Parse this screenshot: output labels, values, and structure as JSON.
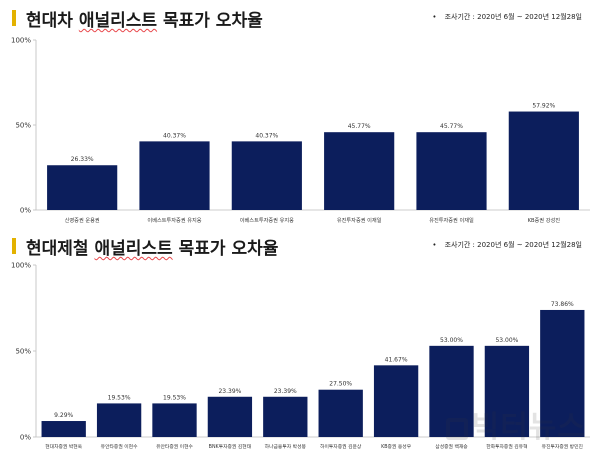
{
  "charts": [
    {
      "title_prefix": "현대차 ",
      "title_underlined": "애널리스트",
      "title_suffix": " 목표가 오차율",
      "period": "조사기간 : 2020년 6월 ~ 2020년 12월28일"
    },
    {
      "title_prefix": "현대제철 ",
      "title_underlined": "애널리스트",
      "title_suffix": " 목표가 오차율",
      "period": "조사기간 : 2020년 6월 ~ 2020년 12월28일"
    }
  ],
  "watermark": "빅터뉴스",
  "colors": {
    "bar": "#0c1e5c",
    "axis": "#bdbdbd",
    "accent": "#e3b200",
    "text": "#333333"
  },
  "chart_data": [
    {
      "type": "bar",
      "title": "현대차 애널리스트 목표가 오차율",
      "categories": [
        "신영증권 운용권",
        "이베스트투자증권 유지웅",
        "이베스트투자증권 유지웅",
        "유진투자증권 이재일",
        "유진투자증권 이재일",
        "KB증권 강성진"
      ],
      "values": [
        26.33,
        40.37,
        40.37,
        45.77,
        45.77,
        57.92
      ],
      "data_labels": [
        "26.33%",
        "40.37%",
        "40.37%",
        "45.77%",
        "45.77%",
        "57.92%"
      ],
      "yticks": [
        "0%",
        "50%",
        "100%"
      ],
      "ylim": [
        0,
        100
      ],
      "grid": false
    },
    {
      "type": "bar",
      "title": "현대제철 애널리스트 목표가 오차율",
      "categories": [
        "현대차증권 박현욱",
        "유안타증권 이현수",
        "유안타증권 이현수",
        "BNK투자증권 김현태",
        "하나금융투자 박성봉",
        "하이투자증권 김윤상",
        "KB증권 용성우",
        "삼성증권 백재승",
        "한화투자증권 김유혁",
        "유진투자증권 방민진"
      ],
      "values": [
        9.29,
        19.53,
        19.53,
        23.39,
        23.39,
        27.5,
        41.67,
        53.0,
        53.0,
        73.86
      ],
      "data_labels": [
        "9.29%",
        "19.53%",
        "19.53%",
        "23.39%",
        "23.39%",
        "27.50%",
        "41.67%",
        "53.00%",
        "53.00%",
        "73.86%"
      ],
      "yticks": [
        "0%",
        "50%",
        "100%"
      ],
      "ylim": [
        0,
        100
      ],
      "grid": false
    }
  ]
}
